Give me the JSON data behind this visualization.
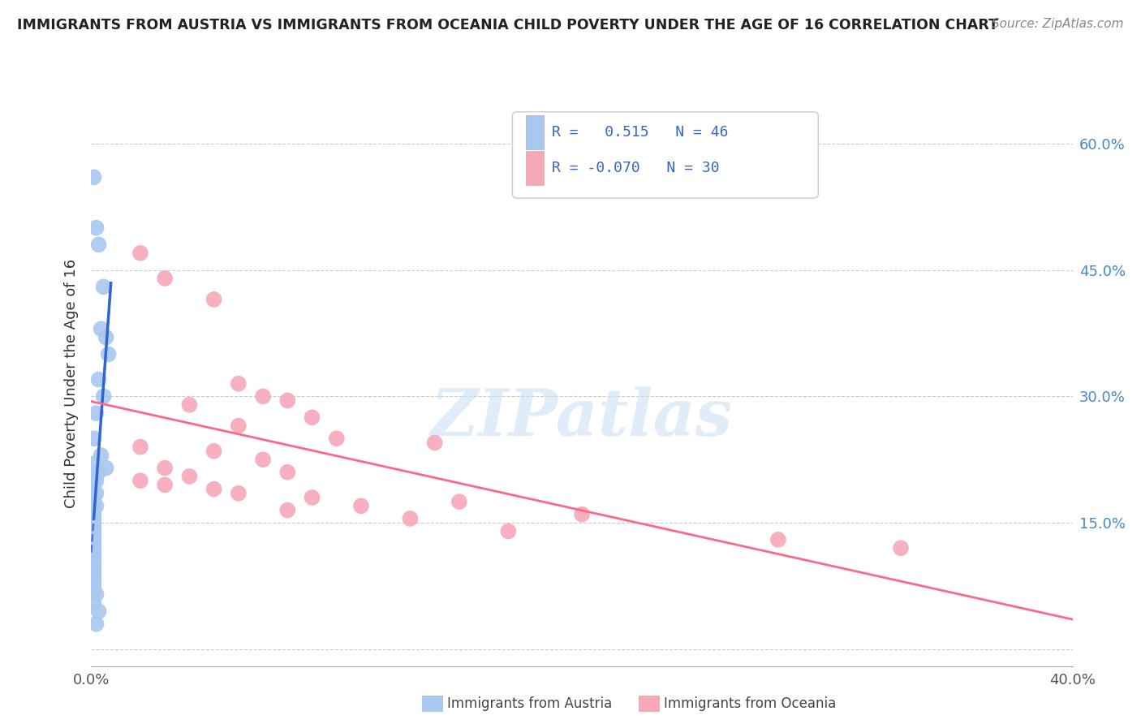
{
  "title": "IMMIGRANTS FROM AUSTRIA VS IMMIGRANTS FROM OCEANIA CHILD POVERTY UNDER THE AGE OF 16 CORRELATION CHART",
  "source": "Source: ZipAtlas.com",
  "ylabel": "Child Poverty Under the Age of 16",
  "y_ticks": [
    0.0,
    0.15,
    0.3,
    0.45,
    0.6
  ],
  "y_tick_labels": [
    "",
    "15.0%",
    "30.0%",
    "45.0%",
    "60.0%"
  ],
  "x_lim": [
    0.0,
    0.4
  ],
  "y_lim": [
    -0.02,
    0.65
  ],
  "legend_austria_R": "0.515",
  "legend_austria_N": "46",
  "legend_oceania_R": "-0.070",
  "legend_oceania_N": "30",
  "color_austria": "#a8c8f0",
  "color_oceania": "#f5a8b8",
  "line_color_austria": "#3366cc",
  "line_color_oceania": "#ff6688",
  "watermark": "ZIPatlas",
  "austria_dots": [
    [
      0.001,
      0.56
    ],
    [
      0.002,
      0.5
    ],
    [
      0.003,
      0.48
    ],
    [
      0.005,
      0.43
    ],
    [
      0.004,
      0.38
    ],
    [
      0.006,
      0.37
    ],
    [
      0.007,
      0.35
    ],
    [
      0.003,
      0.32
    ],
    [
      0.005,
      0.3
    ],
    [
      0.002,
      0.28
    ],
    [
      0.001,
      0.25
    ],
    [
      0.004,
      0.23
    ],
    [
      0.001,
      0.22
    ],
    [
      0.003,
      0.21
    ],
    [
      0.006,
      0.215
    ],
    [
      0.002,
      0.2
    ],
    [
      0.001,
      0.195
    ],
    [
      0.002,
      0.185
    ],
    [
      0.001,
      0.18
    ],
    [
      0.001,
      0.175
    ],
    [
      0.001,
      0.172
    ],
    [
      0.002,
      0.17
    ],
    [
      0.001,
      0.165
    ],
    [
      0.001,
      0.16
    ],
    [
      0.001,
      0.155
    ],
    [
      0.001,
      0.15
    ],
    [
      0.001,
      0.145
    ],
    [
      0.001,
      0.14
    ],
    [
      0.001,
      0.135
    ],
    [
      0.001,
      0.13
    ],
    [
      0.001,
      0.125
    ],
    [
      0.001,
      0.12
    ],
    [
      0.001,
      0.115
    ],
    [
      0.001,
      0.11
    ],
    [
      0.001,
      0.105
    ],
    [
      0.001,
      0.1
    ],
    [
      0.001,
      0.095
    ],
    [
      0.001,
      0.09
    ],
    [
      0.001,
      0.085
    ],
    [
      0.001,
      0.08
    ],
    [
      0.001,
      0.075
    ],
    [
      0.001,
      0.07
    ],
    [
      0.002,
      0.065
    ],
    [
      0.001,
      0.055
    ],
    [
      0.003,
      0.045
    ],
    [
      0.002,
      0.03
    ]
  ],
  "oceania_dots": [
    [
      0.02,
      0.47
    ],
    [
      0.03,
      0.44
    ],
    [
      0.05,
      0.415
    ],
    [
      0.06,
      0.315
    ],
    [
      0.07,
      0.3
    ],
    [
      0.08,
      0.295
    ],
    [
      0.04,
      0.29
    ],
    [
      0.09,
      0.275
    ],
    [
      0.06,
      0.265
    ],
    [
      0.1,
      0.25
    ],
    [
      0.14,
      0.245
    ],
    [
      0.02,
      0.24
    ],
    [
      0.05,
      0.235
    ],
    [
      0.07,
      0.225
    ],
    [
      0.03,
      0.215
    ],
    [
      0.08,
      0.21
    ],
    [
      0.04,
      0.205
    ],
    [
      0.02,
      0.2
    ],
    [
      0.03,
      0.195
    ],
    [
      0.05,
      0.19
    ],
    [
      0.06,
      0.185
    ],
    [
      0.09,
      0.18
    ],
    [
      0.15,
      0.175
    ],
    [
      0.11,
      0.17
    ],
    [
      0.08,
      0.165
    ],
    [
      0.2,
      0.16
    ],
    [
      0.13,
      0.155
    ],
    [
      0.17,
      0.14
    ],
    [
      0.28,
      0.13
    ],
    [
      0.33,
      0.12
    ]
  ]
}
